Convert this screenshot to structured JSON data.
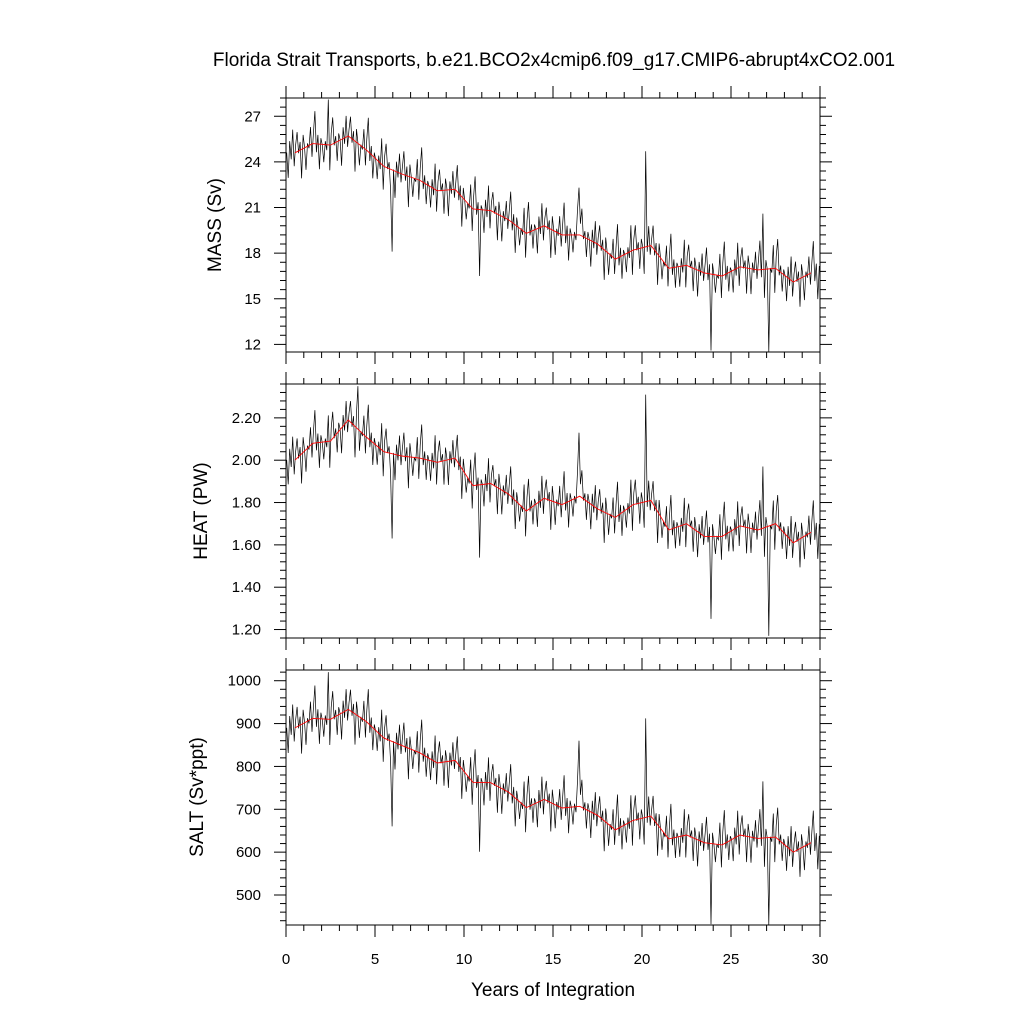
{
  "chart_data": {
    "type": "line",
    "title": "Florida Strait Transports, b.e21.BCO2x4cmip6.f09_g17.CMIP6-abrupt4xCO2.001",
    "xlabel": "Years of Integration",
    "xlim": [
      0,
      30
    ],
    "x_ticks": [
      0,
      5,
      10,
      15,
      20,
      25,
      30
    ],
    "x_tick_labels": [
      "0",
      "5",
      "10",
      "15",
      "20",
      "25",
      "30"
    ],
    "series_colors": {
      "monthly": "#000000",
      "annual": "#ff0000"
    },
    "panels": [
      {
        "name": "mass",
        "ylabel": "MASS (Sv)",
        "ylim": [
          11.5,
          28.2
        ],
        "y_ticks": [
          27,
          24,
          21,
          18,
          15,
          12
        ],
        "y_tick_labels": [
          "27",
          "24",
          "21",
          "18",
          "15",
          "12"
        ],
        "annual_mean": {
          "x": [
            0.5,
            1.5,
            2.5,
            3.5,
            4.5,
            5.5,
            6.5,
            7.5,
            8.5,
            9.5,
            10.5,
            11.5,
            12.5,
            13.5,
            14.5,
            15.5,
            16.5,
            17.5,
            18.5,
            19.5,
            20.5,
            21.5,
            22.5,
            23.5,
            24.5,
            25.5,
            26.5,
            27.5,
            28.5,
            29.5
          ],
          "values": [
            24.6,
            25.2,
            25.1,
            25.7,
            24.8,
            23.7,
            23.2,
            22.8,
            22.1,
            22.2,
            20.9,
            20.8,
            20.2,
            19.3,
            19.8,
            19.2,
            19.2,
            18.6,
            17.6,
            18.2,
            18.5,
            17.0,
            17.2,
            16.7,
            16.5,
            17.1,
            16.9,
            17.0,
            16.1,
            16.7
          ]
        },
        "monthly_anomaly_pattern": [
          0.2,
          -0.9,
          1.1,
          -0.4,
          0.8,
          -1.6,
          0.5,
          1.4,
          -0.7,
          0.3,
          -1.2,
          0.9
        ],
        "monthly_extremes": [
          {
            "x": 2.35,
            "value": 28.1
          },
          {
            "x": 5.95,
            "value": 18.1
          },
          {
            "x": 10.9,
            "value": 16.5
          },
          {
            "x": 16.45,
            "value": 22.3
          },
          {
            "x": 20.2,
            "value": 24.7
          },
          {
            "x": 23.9,
            "value": 11.6
          },
          {
            "x": 26.75,
            "value": 20.6
          },
          {
            "x": 27.15,
            "value": 11.5
          }
        ]
      },
      {
        "name": "heat",
        "ylabel": "HEAT (PW)",
        "ylim": [
          1.16,
          2.36
        ],
        "y_ticks": [
          2.2,
          2.0,
          1.8,
          1.6,
          1.4,
          1.2
        ],
        "y_tick_labels": [
          "2.20",
          "2.00",
          "1.80",
          "1.60",
          "1.40",
          "1.20"
        ],
        "annual_mean": {
          "x": [
            0.5,
            1.5,
            2.5,
            3.5,
            4.5,
            5.5,
            6.5,
            7.5,
            8.5,
            9.5,
            10.5,
            11.5,
            12.5,
            13.5,
            14.5,
            15.5,
            16.5,
            17.5,
            18.5,
            19.5,
            20.5,
            21.5,
            22.5,
            23.5,
            24.5,
            25.5,
            26.5,
            27.5,
            28.5,
            29.5
          ],
          "values": [
            2.0,
            2.08,
            2.09,
            2.19,
            2.11,
            2.04,
            2.02,
            2.01,
            1.99,
            2.01,
            1.88,
            1.89,
            1.84,
            1.76,
            1.82,
            1.79,
            1.83,
            1.77,
            1.73,
            1.79,
            1.81,
            1.67,
            1.7,
            1.64,
            1.64,
            1.69,
            1.67,
            1.7,
            1.61,
            1.66
          ]
        },
        "monthly_anomaly_pattern": [
          0.015,
          -0.06,
          0.08,
          -0.03,
          0.06,
          -0.12,
          0.04,
          0.1,
          -0.05,
          0.02,
          -0.09,
          0.07
        ],
        "monthly_extremes": [
          {
            "x": 4.0,
            "value": 2.35
          },
          {
            "x": 5.95,
            "value": 1.63
          },
          {
            "x": 10.9,
            "value": 1.54
          },
          {
            "x": 16.45,
            "value": 2.13
          },
          {
            "x": 20.2,
            "value": 2.31
          },
          {
            "x": 23.9,
            "value": 1.25
          },
          {
            "x": 26.75,
            "value": 1.97
          },
          {
            "x": 27.15,
            "value": 1.17
          }
        ]
      },
      {
        "name": "salt",
        "ylabel": "SALT (Sv*ppt)",
        "ylim": [
          430,
          1025
        ],
        "y_ticks": [
          1000,
          900,
          800,
          700,
          600,
          500
        ],
        "y_tick_labels": [
          "1000",
          "900",
          "800",
          "700",
          "600",
          "500"
        ],
        "annual_mean": {
          "x": [
            0.5,
            1.5,
            2.5,
            3.5,
            4.5,
            5.5,
            6.5,
            7.5,
            8.5,
            9.5,
            10.5,
            11.5,
            12.5,
            13.5,
            14.5,
            15.5,
            16.5,
            17.5,
            18.5,
            19.5,
            20.5,
            21.5,
            22.5,
            23.5,
            24.5,
            25.5,
            26.5,
            27.5,
            28.5,
            29.5
          ],
          "values": [
            890,
            912,
            910,
            933,
            905,
            866,
            849,
            832,
            808,
            814,
            763,
            762,
            740,
            704,
            723,
            703,
            707,
            686,
            652,
            674,
            684,
            631,
            640,
            622,
            617,
            640,
            632,
            635,
            600,
            622
          ]
        },
        "monthly_anomaly_pattern": [
          7,
          -32,
          40,
          -15,
          29,
          -58,
          18,
          50,
          -25,
          11,
          -43,
          32
        ],
        "monthly_extremes": [
          {
            "x": 2.35,
            "value": 1020
          },
          {
            "x": 5.95,
            "value": 660
          },
          {
            "x": 10.9,
            "value": 601
          },
          {
            "x": 16.45,
            "value": 860
          },
          {
            "x": 20.2,
            "value": 912
          },
          {
            "x": 23.9,
            "value": 432
          },
          {
            "x": 26.75,
            "value": 765
          },
          {
            "x": 27.15,
            "value": 430
          }
        ]
      }
    ]
  }
}
